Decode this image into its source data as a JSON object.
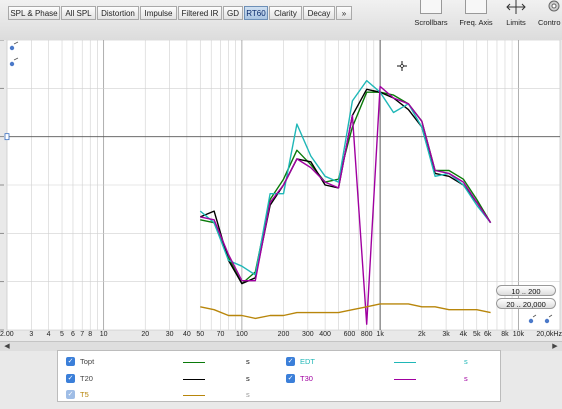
{
  "tabs": [
    {
      "label": "SPL & Phase",
      "active": false
    },
    {
      "label": "All SPL",
      "active": false
    },
    {
      "label": "Distortion",
      "active": false
    },
    {
      "label": "Impulse",
      "active": false
    },
    {
      "label": "Filtered IR",
      "active": false
    },
    {
      "label": "GD",
      "active": false
    },
    {
      "label": "RT60",
      "active": true
    },
    {
      "label": "Clarity",
      "active": false
    },
    {
      "label": "Decay",
      "active": false
    },
    {
      "label": "»",
      "active": false
    }
  ],
  "toolbar": {
    "scrollbars_label": "Scrollbars",
    "freq_axis_label": "Freq. Axis",
    "limits_label": "Limits",
    "controls_label": "Contro"
  },
  "range_buttons": {
    "range1": "10 .. 200",
    "range2": "20 .. 20,000"
  },
  "x_axis_ticks": [
    "2.00",
    "3",
    "4",
    "5",
    "6",
    "7",
    "8",
    "10",
    "20",
    "30",
    "40",
    "50",
    "70",
    "100",
    "200",
    "300",
    "400",
    "600",
    "800",
    "1k",
    "2k",
    "3k",
    "4k",
    "5k",
    "6k",
    "8k",
    "10k",
    "20,0kHz"
  ],
  "chart_data": {
    "type": "line",
    "x_scale": "log",
    "xlim": [
      2,
      20000
    ],
    "ylim": [
      0,
      1
    ],
    "grid": true,
    "x": [
      50,
      63,
      80,
      100,
      125,
      160,
      200,
      250,
      315,
      400,
      500,
      630,
      800,
      1000,
      1250,
      1600,
      2000,
      2500,
      3150,
      4000,
      5000,
      6300,
      8000,
      10000
    ],
    "series": [
      {
        "name": "Topt",
        "color": "#0a7a0a",
        "values": [
          0.38,
          0.37,
          0.25,
          0.16,
          0.2,
          0.45,
          0.52,
          0.62,
          0.57,
          0.51,
          0.52,
          0.7,
          0.82,
          0.82,
          0.81,
          0.78,
          0.72,
          0.55,
          0.55,
          0.52,
          0.45,
          0.37,
          null,
          null
        ]
      },
      {
        "name": "T20",
        "color": "#000000",
        "values": [
          0.39,
          0.41,
          0.24,
          0.16,
          0.18,
          0.43,
          0.5,
          0.59,
          0.58,
          0.5,
          0.49,
          0.74,
          0.83,
          0.82,
          0.8,
          0.76,
          0.7,
          0.54,
          0.53,
          0.5,
          0.44,
          0.37,
          null,
          null
        ]
      },
      {
        "name": "EDT",
        "color": "#1fb7b7",
        "values": [
          0.41,
          0.37,
          0.24,
          0.22,
          0.19,
          0.47,
          0.47,
          0.71,
          0.6,
          0.53,
          0.51,
          0.79,
          0.86,
          0.82,
          0.75,
          0.78,
          0.7,
          0.53,
          0.54,
          0.5,
          0.43,
          0.37,
          null,
          null
        ]
      },
      {
        "name": "T30",
        "color": "#a000a0",
        "values": [
          0.39,
          0.38,
          0.26,
          0.17,
          0.17,
          0.44,
          0.5,
          0.59,
          0.56,
          0.51,
          0.49,
          0.74,
          0.02,
          0.84,
          0.8,
          0.78,
          0.72,
          0.55,
          0.54,
          0.51,
          0.44,
          0.37,
          null,
          null
        ]
      },
      {
        "name": "T5",
        "color": "#b8860b",
        "values": [
          0.08,
          0.07,
          0.05,
          0.05,
          0.04,
          0.05,
          0.05,
          0.06,
          0.06,
          0.06,
          0.06,
          0.07,
          0.08,
          0.09,
          0.09,
          0.09,
          0.08,
          0.08,
          0.07,
          0.07,
          0.07,
          0.06,
          null,
          null
        ]
      }
    ]
  },
  "legend": [
    {
      "name": "Topt",
      "unit": "s",
      "color": "#0a7a0a",
      "checked": true,
      "enabled": true
    },
    {
      "name": "EDT",
      "unit": "s",
      "color": "#1fb7b7",
      "checked": true,
      "enabled": true
    },
    {
      "name": "T20",
      "unit": "s",
      "color": "#000000",
      "checked": true,
      "enabled": true
    },
    {
      "name": "T30",
      "unit": "s",
      "color": "#a000a0",
      "checked": true,
      "enabled": true
    },
    {
      "name": "T5",
      "unit": "s",
      "color": "#b8860b",
      "checked": true,
      "enabled": false
    }
  ]
}
